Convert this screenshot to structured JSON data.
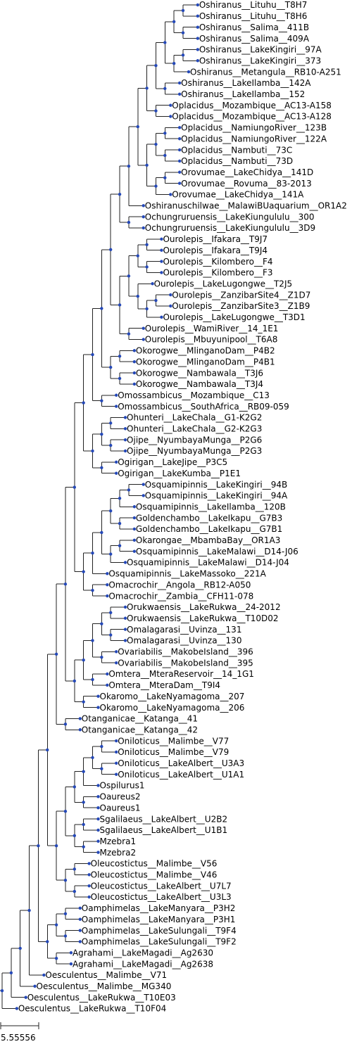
{
  "tree": "(((((((((((((((((((((Oshiranus__Lituhu__T8H7,Oshiranus__Lituhu__T8H6),(Oshiranus__Salima__411B,Oshiranus__Salima__409A)),((Oshiranus__LakeKingiri__97A,Oshiranus__LakeKingiri__373),Oshiranus__Metangula__RB10-A251)),(Oshiranus__LakeIlamba__142A,Oshiranus__LakeIlamba__152)),(Oplacidus__Mozambique__AC13-A158,Oplacidus__Mozambique__AC13-A128)),(((Oplacidus__NamiungoRiver__123B,Oplacidus__NamiungoRiver__122A),(Oplacidus__Nambuti__73C,Oplacidus__Nambuti__73D)),((Orovumae__LakeChidya__141D,Orovumae__Rovuma__83-2013),Orovumae__LakeChidya__141A))),Oshiranuschilwae__MalawiBUaquarium__OR1A2),(Ochungruruensis__LakeKiungululu__300,Ochungruruensis__LakeKiungululu__3D9)),((((Ourolepis__Ifakara__T9J7,Ourolepis__Ifakara__T9J4),(Ourolepis__Kilombero__F4,Ourolepis__Kilombero__F3)),(Ourolepis__LakeLugongwe__T2J5,((Ourolepis__ZanzibarSite4__Z1D7,Ourolepis__ZanzibarSite3__Z1B9),Ourolepis__LakeLugongwe__T3D1))),(Ourolepis__WamiRiver__14_1E1,Ourolepis__Mbuyunipool__T6A8))),((Okorogwe__MlinganoDam__P4B2,Okorogwe__MlinganoDam__P4B1),(Okorogwe__Nambawala__T3J6,Okorogwe__Nambawala__T3J4))),(Omossambicus__Mozambique__C13,Omossambicus__SouthAfrica__RB09-059)),(((Ohunteri__LakeChala__G1-K2G2,Ohunteri__LakeChala__G2-K2G3),(Ojipe__NyumbayaMunga__P2G6,Ojipe__NyumbayaMunga__P2G3)),(Ogirigan__LakeJipe__P3C5,Ogirigan__LakeKumba__P1E1))),((((((Osquamipinnis__LakeKingiri__94B,Osquamipinnis__LakeKingiri__94A),Osquamipinnis__LakeIlamba__120B),(Goldenchambo__LakeIkapu__G7B3,Goldenchambo__LakeIkapu__G7B1)),((Okarongae__MbambaBay__OR1A3,Osquamipinnis__LakeMalawi__D14-J06),Osquamipinnis__LakeMalawi__D14-J04)),Osquamipinnis__LakeMassoko__221A),(Omacrochir__Angola__RB12-A050,Omacrochir__Zambia__CFH11-078))),(((((Orukwaensis__LakeRukwa__24-2012,Orukwaensis__LakeRukwa__T10D02),(Omalagarasi__Uvinza__131,Omalagarasi__Uvinza__130)),(Ovariabilis__MakobeIsland__396,Ovariabilis__MakobeIsland__395)),(Omtera__MteraReservoir__14_1G1,Omtera__MteraDam__T9I4)),(Okaromo__LakeNyamagoma__207,Okaromo__LakeNyamagoma__206))),(Otanganicae__Katanga__41,Otanganicae__Katanga__42)),((((((Oniloticus__Malimbe__V77,Oniloticus__Malimbe__V79),(Oniloticus__LakeAlbert__U3A3,Oniloticus__LakeAlbert__U1A1)),Ospilurus1),(Oaureus2,Oaureus1)),((Sgalilaeus__LakeAlbert__U2B2,Sgalilaeus__LakeAlbert__U1B1),(Mzebra1,Mzebra2))),((Oleucostictus__Malimbe__V56,Oleucostictus__Malimbe__V46),(Oleucostictus__LakeAlbert__U7L7,Oleucostictus__LakeAlbert__U3L3)))),(((Oamphimelas__LakeManyara__P3H2,Oamphimelas__LakeManyara__P3H1),(Oamphimelas__LakeSulungali__T9F4,Oamphimelas__LakeSulungali__T9F2)),(Agrahami__LakeMagadi__Ag2630,Agrahami__LakeMagadi__Ag2638))),Oesculentus__Malimbe__V71),Oesculentus__Malimbe__MG340),Oesculentus__LakeRukwa__T10E03),Oesculentus__LakeRukwa__T10F04);",
  "scale_bar": {
    "label": "5.55556"
  },
  "colors": {
    "branch": "#222222",
    "node": "#2448b8",
    "label": "#000000"
  }
}
